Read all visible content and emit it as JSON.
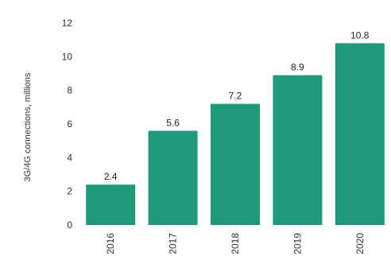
{
  "chart_data": {
    "type": "bar",
    "title": "",
    "xlabel": "",
    "ylabel": "3G/4G connections, millions",
    "categories": [
      "2016",
      "2017",
      "2018",
      "2019",
      "2020"
    ],
    "values": [
      2.4,
      5.6,
      7.2,
      8.9,
      10.8
    ],
    "data_labels": [
      "2.4",
      "5.6",
      "7.2",
      "8.9",
      "10.8"
    ],
    "ylim": [
      0,
      12
    ],
    "yticks": [
      "0",
      "2",
      "4",
      "6",
      "8",
      "10",
      "12"
    ],
    "grid": false,
    "bar_color": "#1e9a78"
  }
}
